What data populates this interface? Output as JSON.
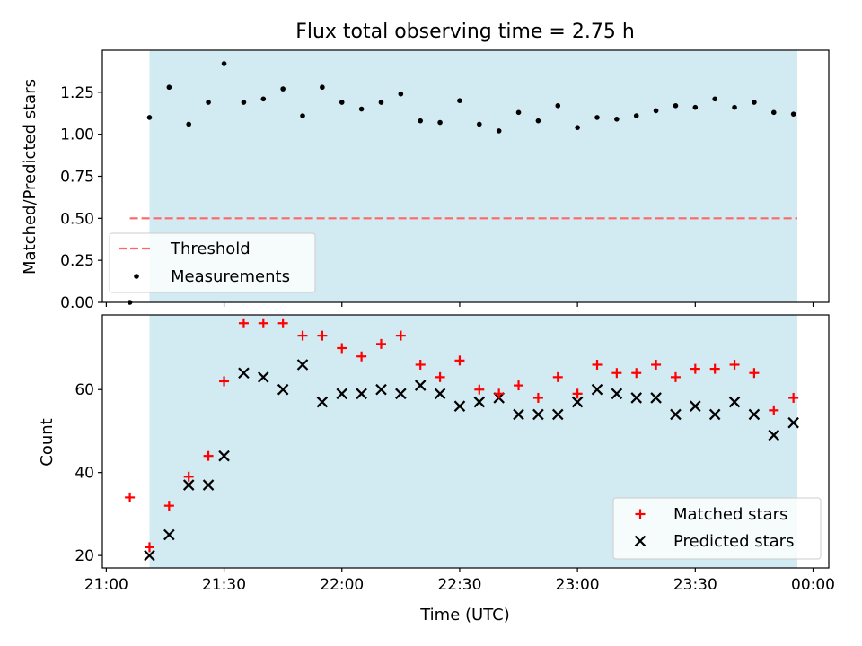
{
  "chart_data": {
    "title": "Flux total observing time = 2.75 h",
    "xlabel": "Time (UTC)",
    "x_ticks": [
      "21:00",
      "21:30",
      "22:00",
      "22:30",
      "23:00",
      "23:30",
      "00:00"
    ],
    "x_tick_times": [
      "21:00",
      "21:30",
      "22:00",
      "22:30",
      "23:00",
      "23:30",
      "00:00"
    ],
    "x_range": [
      "20:59",
      "00:04"
    ],
    "shaded_interval": {
      "start": "21:11",
      "end": "23:56",
      "color": "#add8e6"
    },
    "panels": [
      {
        "type": "scatter",
        "ylabel": "Matched/Predicted stars",
        "ylim": [
          0,
          1.5
        ],
        "y_ticks": [
          "0.00",
          "0.25",
          "0.50",
          "0.75",
          "1.00",
          "1.25"
        ],
        "y_tick_values": [
          0,
          0.25,
          0.5,
          0.75,
          1.0,
          1.25
        ],
        "legend": {
          "position": "lower-left"
        },
        "series": [
          {
            "name": "Threshold",
            "kind": "dashed-line",
            "color": "#ff6666",
            "y": 0.5,
            "x_start": "21:06",
            "x_end": "23:56"
          },
          {
            "name": "Measurements",
            "kind": "dot",
            "color": "#000000",
            "points": [
              [
                "21:06",
                0.0
              ],
              [
                "21:11",
                1.1
              ],
              [
                "21:16",
                1.28
              ],
              [
                "21:21",
                1.06
              ],
              [
                "21:26",
                1.19
              ],
              [
                "21:30",
                1.42
              ],
              [
                "21:35",
                1.19
              ],
              [
                "21:40",
                1.21
              ],
              [
                "21:45",
                1.27
              ],
              [
                "21:50",
                1.11
              ],
              [
                "21:55",
                1.28
              ],
              [
                "22:00",
                1.19
              ],
              [
                "22:05",
                1.15
              ],
              [
                "22:10",
                1.19
              ],
              [
                "22:15",
                1.24
              ],
              [
                "22:20",
                1.08
              ],
              [
                "22:25",
                1.07
              ],
              [
                "22:30",
                1.2
              ],
              [
                "22:35",
                1.06
              ],
              [
                "22:40",
                1.02
              ],
              [
                "22:45",
                1.13
              ],
              [
                "22:50",
                1.08
              ],
              [
                "22:55",
                1.17
              ],
              [
                "23:00",
                1.04
              ],
              [
                "23:05",
                1.1
              ],
              [
                "23:10",
                1.09
              ],
              [
                "23:15",
                1.11
              ],
              [
                "23:20",
                1.14
              ],
              [
                "23:25",
                1.17
              ],
              [
                "23:30",
                1.16
              ],
              [
                "23:35",
                1.21
              ],
              [
                "23:40",
                1.16
              ],
              [
                "23:45",
                1.19
              ],
              [
                "23:50",
                1.13
              ],
              [
                "23:55",
                1.12
              ]
            ]
          }
        ]
      },
      {
        "type": "scatter",
        "ylabel": "Count",
        "ylim": [
          17,
          78
        ],
        "y_ticks": [
          "20",
          "40",
          "60"
        ],
        "y_tick_values": [
          20,
          40,
          60
        ],
        "legend": {
          "position": "lower-right"
        },
        "x": [
          "21:06",
          "21:11",
          "21:16",
          "21:21",
          "21:26",
          "21:30",
          "21:35",
          "21:40",
          "21:45",
          "21:50",
          "21:55",
          "22:00",
          "22:05",
          "22:10",
          "22:15",
          "22:20",
          "22:25",
          "22:30",
          "22:35",
          "22:40",
          "22:45",
          "22:50",
          "22:55",
          "23:00",
          "23:05",
          "23:10",
          "23:15",
          "23:20",
          "23:25",
          "23:30",
          "23:35",
          "23:40",
          "23:45",
          "23:50",
          "23:55"
        ],
        "series": [
          {
            "name": "Matched stars",
            "marker": "plus",
            "color": "#ff0000",
            "values": [
              34,
              22,
              32,
              39,
              44,
              62,
              76,
              76,
              76,
              73,
              73,
              70,
              68,
              71,
              73,
              66,
              63,
              67,
              60,
              59,
              61,
              58,
              63,
              59,
              66,
              64,
              64,
              66,
              63,
              65,
              65,
              66,
              64,
              55,
              58
            ]
          },
          {
            "name": "Predicted stars",
            "marker": "x",
            "color": "#000000",
            "values": [
              null,
              20,
              25,
              37,
              37,
              44,
              64,
              63,
              60,
              66,
              57,
              59,
              59,
              60,
              59,
              61,
              59,
              56,
              57,
              58,
              54,
              54,
              54,
              57,
              60,
              59,
              58,
              58,
              54,
              56,
              54,
              57,
              54,
              49,
              52
            ]
          }
        ]
      }
    ]
  }
}
